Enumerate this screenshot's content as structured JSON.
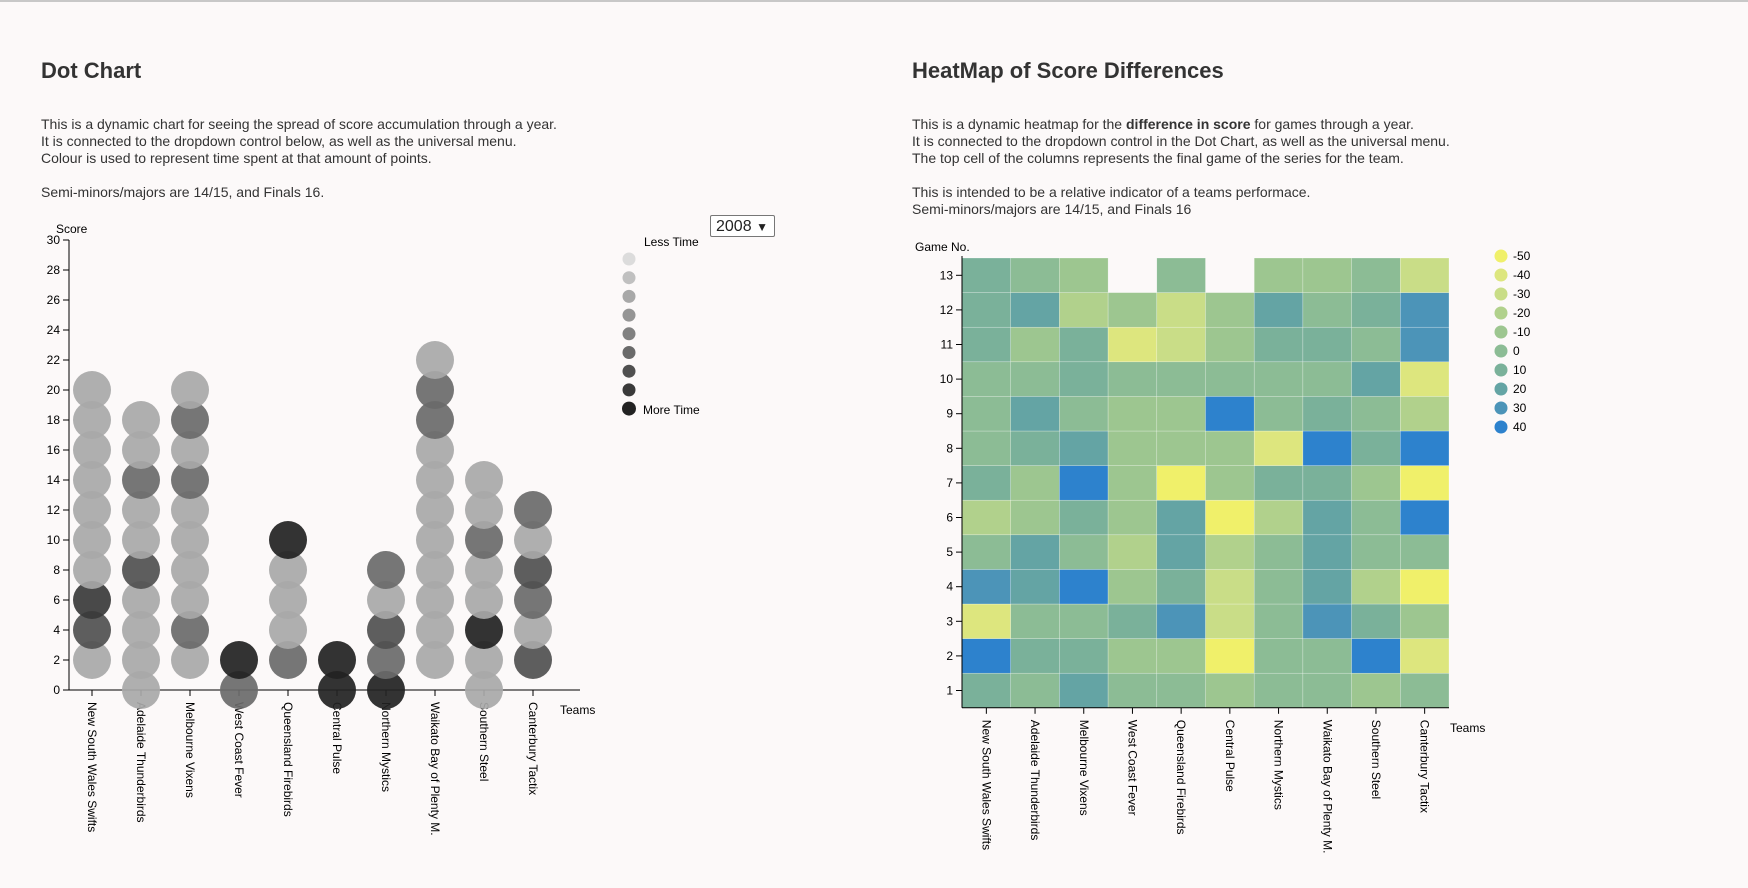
{
  "left": {
    "title": "Dot Chart",
    "description": [
      "This is a dynamic chart for seeing the spread of score accumulation through a year.",
      "It is connected to the dropdown control below, as well as the universal menu.",
      "Colour is used to represent time spent at that amount of points.",
      "",
      "Semi-minors/majors are 14/15, and Finals 16."
    ],
    "year_select": {
      "value": "2008"
    },
    "legend": {
      "top_label": "Less Time",
      "bottom_label": "More Time",
      "shades": [
        "#dcdcdc",
        "#c0c0c0",
        "#a8a8a8",
        "#959595",
        "#818181",
        "#6a6a6a",
        "#505050",
        "#3a3a3a",
        "#222222"
      ]
    }
  },
  "right": {
    "title": "HeatMap of Score Differences",
    "description_line1_pre": "This is a dynamic heatmap for the ",
    "description_line1_bold": "difference in score",
    "description_line1_post": " for games through a year.",
    "description_rest": [
      "It is connected to the dropdown control in the Dot Chart, as well as the universal menu.",
      "The top cell of the columns represents the final game of the series for the team.",
      "",
      "This is intended to be a relative indicator of a teams performace.",
      "Semi-minors/majors are 14/15, and Finals 16"
    ]
  },
  "chart_data": [
    {
      "type": "scatter",
      "title": "Dot Chart",
      "xlabel": "Teams",
      "ylabel": "Score",
      "ylim": [
        0,
        30
      ],
      "y_ticks": [
        0,
        2,
        4,
        6,
        8,
        10,
        12,
        14,
        16,
        18,
        20,
        22,
        24,
        26,
        28,
        30
      ],
      "categories": [
        "New South Wales Swifts",
        "Adelaide Thunderbirds",
        "Melbourne Vixens",
        "West Coast Fever",
        "Queensland Firebirds",
        "Central Pulse",
        "Northern Mystics",
        "Waikato Bay of Plenty M.",
        "Southern Steel",
        "Canterbury Tactix"
      ],
      "points": [
        [
          {
            "y": 2,
            "t": 2
          },
          {
            "y": 4,
            "t": 6
          },
          {
            "y": 6,
            "t": 7
          },
          {
            "y": 8,
            "t": 2
          },
          {
            "y": 10,
            "t": 2
          },
          {
            "y": 12,
            "t": 2
          },
          {
            "y": 14,
            "t": 2
          },
          {
            "y": 16,
            "t": 2
          },
          {
            "y": 18,
            "t": 2
          },
          {
            "y": 20,
            "t": 2
          }
        ],
        [
          {
            "y": 0,
            "t": 2
          },
          {
            "y": 2,
            "t": 2
          },
          {
            "y": 4,
            "t": 2
          },
          {
            "y": 6,
            "t": 2
          },
          {
            "y": 8,
            "t": 6
          },
          {
            "y": 10,
            "t": 2
          },
          {
            "y": 12,
            "t": 2
          },
          {
            "y": 14,
            "t": 5
          },
          {
            "y": 16,
            "t": 2
          },
          {
            "y": 18,
            "t": 2
          }
        ],
        [
          {
            "y": 2,
            "t": 2
          },
          {
            "y": 4,
            "t": 5
          },
          {
            "y": 6,
            "t": 2
          },
          {
            "y": 8,
            "t": 2
          },
          {
            "y": 10,
            "t": 2
          },
          {
            "y": 12,
            "t": 2
          },
          {
            "y": 14,
            "t": 5
          },
          {
            "y": 16,
            "t": 2
          },
          {
            "y": 18,
            "t": 5
          },
          {
            "y": 20,
            "t": 2
          }
        ],
        [
          {
            "y": 0,
            "t": 5
          },
          {
            "y": 2,
            "t": 8
          }
        ],
        [
          {
            "y": 2,
            "t": 5
          },
          {
            "y": 4,
            "t": 2
          },
          {
            "y": 6,
            "t": 2
          },
          {
            "y": 8,
            "t": 2
          },
          {
            "y": 10,
            "t": 8
          }
        ],
        [
          {
            "y": 0,
            "t": 8
          },
          {
            "y": 2,
            "t": 8
          }
        ],
        [
          {
            "y": 0,
            "t": 8
          },
          {
            "y": 2,
            "t": 5
          },
          {
            "y": 4,
            "t": 6
          },
          {
            "y": 6,
            "t": 2
          },
          {
            "y": 8,
            "t": 5
          }
        ],
        [
          {
            "y": 2,
            "t": 2
          },
          {
            "y": 4,
            "t": 2
          },
          {
            "y": 6,
            "t": 2
          },
          {
            "y": 8,
            "t": 2
          },
          {
            "y": 10,
            "t": 2
          },
          {
            "y": 12,
            "t": 2
          },
          {
            "y": 14,
            "t": 2
          },
          {
            "y": 16,
            "t": 2
          },
          {
            "y": 18,
            "t": 5
          },
          {
            "y": 20,
            "t": 5
          },
          {
            "y": 22,
            "t": 2
          }
        ],
        [
          {
            "y": 0,
            "t": 2
          },
          {
            "y": 2,
            "t": 2
          },
          {
            "y": 4,
            "t": 8
          },
          {
            "y": 6,
            "t": 2
          },
          {
            "y": 8,
            "t": 2
          },
          {
            "y": 10,
            "t": 5
          },
          {
            "y": 12,
            "t": 2
          },
          {
            "y": 14,
            "t": 2
          }
        ],
        [
          {
            "y": 2,
            "t": 6
          },
          {
            "y": 4,
            "t": 2
          },
          {
            "y": 6,
            "t": 5
          },
          {
            "y": 8,
            "t": 6
          },
          {
            "y": 10,
            "t": 2
          },
          {
            "y": 12,
            "t": 5
          }
        ]
      ]
    },
    {
      "type": "heatmap",
      "title": "HeatMap of Score Differences",
      "xlabel": "Teams",
      "ylabel": "Game No.",
      "y_ticks": [
        1,
        2,
        3,
        4,
        5,
        6,
        7,
        8,
        9,
        10,
        11,
        12,
        13
      ],
      "categories": [
        "New South Wales Swifts",
        "Adelaide Thunderbirds",
        "Melbourne Vixens",
        "West Coast Fever",
        "Queensland Firebirds",
        "Central Pulse",
        "Northern Mystics",
        "Waikato Bay of Plenty M.",
        "Southern Steel",
        "Canterbury Tactix"
      ],
      "legend": [
        -50,
        -40,
        -30,
        -20,
        -10,
        0,
        10,
        20,
        30,
        40
      ],
      "colors": [
        "#f0f06a",
        "#dde67e",
        "#c9dd87",
        "#b1d18c",
        "#9dc690",
        "#8cbc95",
        "#7ab19a",
        "#64a4a4",
        "#4c94b8",
        "#2d82cd"
      ],
      "values": [
        [
          10,
          0,
          20,
          0,
          5,
          -10,
          0,
          0,
          -10,
          5
        ],
        [
          40,
          10,
          10,
          -10,
          -10,
          -50,
          0,
          5,
          40,
          -40
        ],
        [
          -40,
          5,
          0,
          10,
          30,
          -30,
          0,
          30,
          10,
          -10
        ],
        [
          30,
          20,
          40,
          -10,
          10,
          -30,
          0,
          20,
          -20,
          -50
        ],
        [
          0,
          20,
          5,
          -20,
          20,
          -20,
          5,
          20,
          0,
          5
        ],
        [
          -20,
          -10,
          10,
          -10,
          20,
          -50,
          -20,
          20,
          0,
          40
        ],
        [
          10,
          -10,
          40,
          -10,
          -50,
          -5,
          10,
          10,
          -5,
          -50
        ],
        [
          5,
          10,
          20,
          -10,
          -5,
          -10,
          -40,
          40,
          10,
          40
        ],
        [
          0,
          20,
          0,
          -10,
          -5,
          40,
          0,
          10,
          5,
          -20
        ],
        [
          5,
          0,
          10,
          0,
          5,
          0,
          5,
          0,
          20,
          -40
        ],
        [
          10,
          -10,
          10,
          -40,
          -30,
          -10,
          10,
          10,
          0,
          30
        ],
        [
          10,
          20,
          -20,
          -10,
          -30,
          -10,
          20,
          0,
          10,
          30
        ],
        [
          10,
          0,
          -5,
          null,
          0,
          null,
          -10,
          -10,
          5,
          -30
        ]
      ]
    }
  ]
}
